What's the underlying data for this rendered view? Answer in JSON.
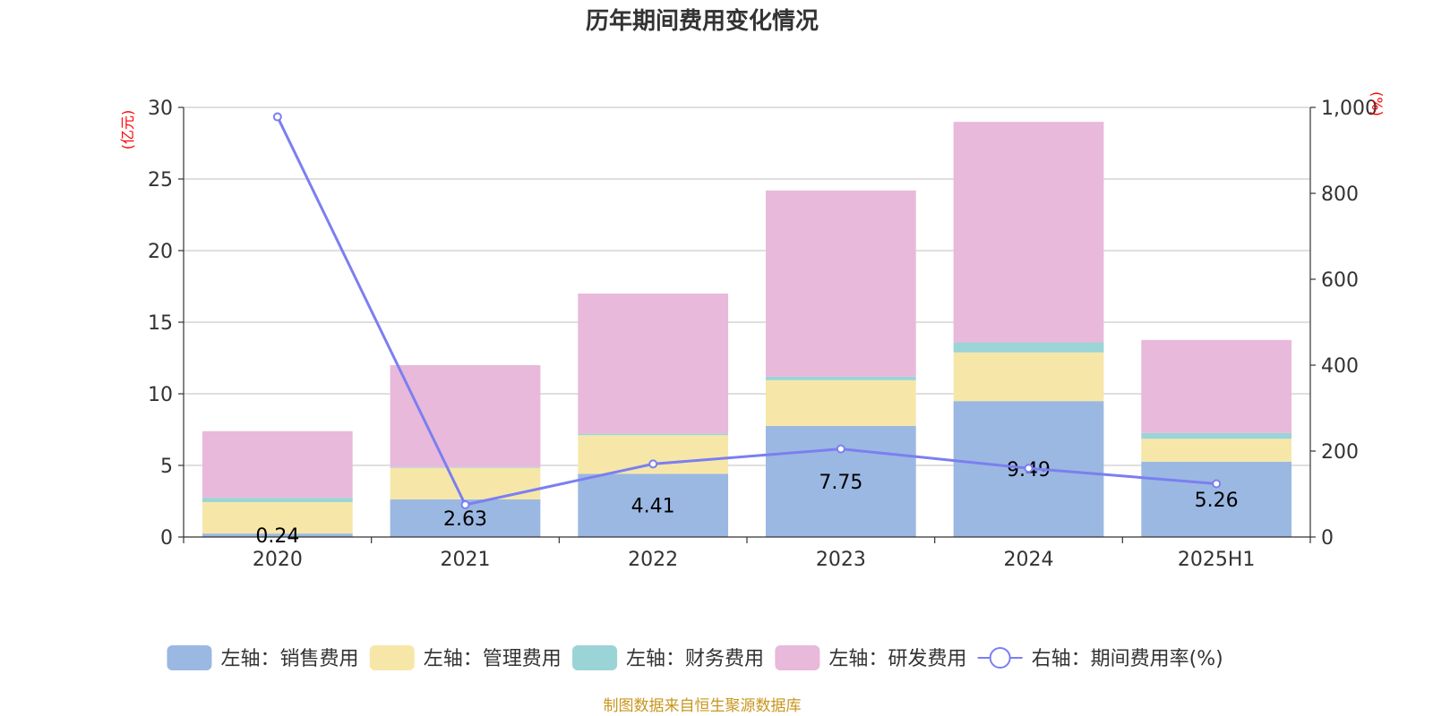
{
  "chart_data": {
    "type": "bar",
    "title": "历年期间费用变化情况",
    "categories": [
      "2020",
      "2021",
      "2022",
      "2023",
      "2024",
      "2025H1"
    ],
    "left_axis": {
      "unit_label": "(亿元)",
      "range": [
        0,
        30
      ],
      "ticks": [
        "0",
        "5",
        "10",
        "15",
        "20",
        "25",
        "30"
      ]
    },
    "right_axis": {
      "unit_label": "(%)",
      "range": [
        0,
        1000
      ],
      "ticks": [
        "0",
        "200",
        "400",
        "600",
        "800",
        "1,000"
      ]
    },
    "series": [
      {
        "name": "左轴：销售费用",
        "axis": "left",
        "stack": "a",
        "color": "#9bb8e2",
        "values": [
          0.24,
          2.63,
          4.41,
          7.75,
          9.49,
          5.26
        ],
        "labels": [
          "0.24",
          "2.63",
          "4.41",
          "7.75",
          "9.49",
          "5.26"
        ]
      },
      {
        "name": "左轴：管理费用",
        "axis": "left",
        "stack": "a",
        "color": "#f6e7a9",
        "values": [
          2.2,
          2.2,
          2.7,
          3.2,
          3.4,
          1.6
        ]
      },
      {
        "name": "左轴：财务费用",
        "axis": "left",
        "stack": "a",
        "color": "#9ad4d6",
        "values": [
          0.3,
          0.05,
          0.1,
          0.25,
          0.7,
          0.4
        ]
      },
      {
        "name": "左轴：研发费用",
        "axis": "left",
        "stack": "a",
        "color": "#e8b9da",
        "values": [
          4.65,
          7.12,
          9.79,
          13.0,
          15.4,
          6.5
        ]
      },
      {
        "name": "右轴：期间费用率(%)",
        "axis": "right",
        "type": "line",
        "color": "#7b7ff0",
        "values": [
          978,
          75,
          170,
          205,
          160,
          124
        ]
      }
    ],
    "grid": true,
    "legend_position": "bottom"
  },
  "footer": {
    "source": "制图数据来自恒生聚源数据库"
  }
}
